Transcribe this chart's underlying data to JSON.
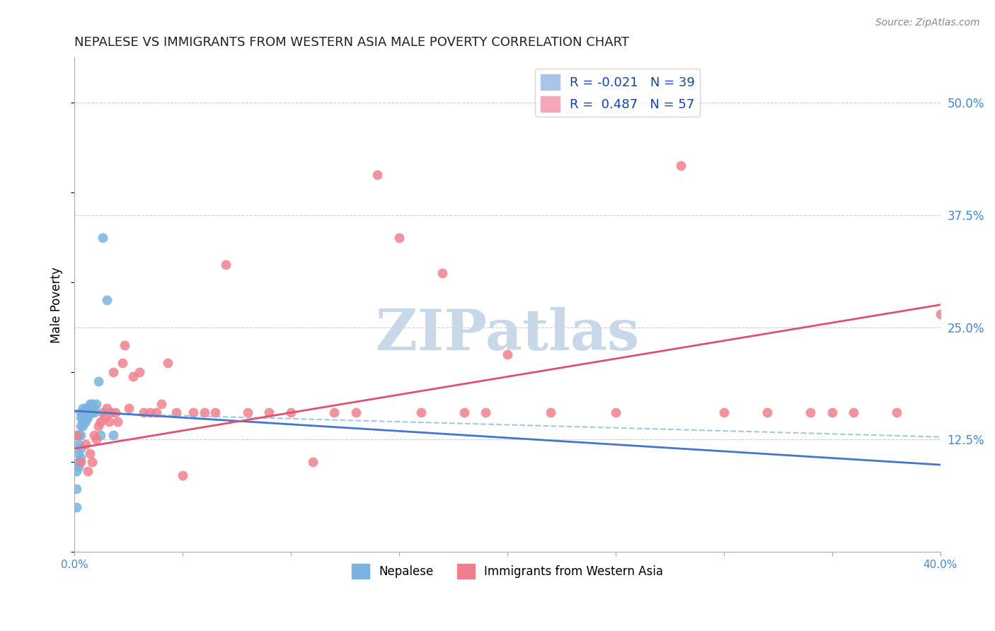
{
  "title": "NEPALESE VS IMMIGRANTS FROM WESTERN ASIA MALE POVERTY CORRELATION CHART",
  "source": "Source: ZipAtlas.com",
  "ylabel": "Male Poverty",
  "ytick_labels": [
    "12.5%",
    "25.0%",
    "37.5%",
    "50.0%"
  ],
  "ytick_values": [
    0.125,
    0.25,
    0.375,
    0.5
  ],
  "xlim": [
    0.0,
    0.4
  ],
  "ylim": [
    0.0,
    0.55
  ],
  "legend_r_entries": [
    {
      "label": "R = -0.021   N = 39",
      "color": "#aac4e8"
    },
    {
      "label": "R =  0.487   N = 57",
      "color": "#f4a7b9"
    }
  ],
  "nepalese_x": [
    0.001,
    0.001,
    0.001,
    0.002,
    0.002,
    0.002,
    0.002,
    0.002,
    0.003,
    0.003,
    0.003,
    0.003,
    0.003,
    0.003,
    0.004,
    0.004,
    0.004,
    0.004,
    0.004,
    0.005,
    0.005,
    0.005,
    0.005,
    0.006,
    0.006,
    0.006,
    0.007,
    0.007,
    0.007,
    0.008,
    0.008,
    0.009,
    0.009,
    0.01,
    0.011,
    0.012,
    0.013,
    0.015,
    0.018
  ],
  "nepalese_y": [
    0.05,
    0.07,
    0.09,
    0.095,
    0.1,
    0.11,
    0.12,
    0.13,
    0.105,
    0.115,
    0.13,
    0.14,
    0.15,
    0.155,
    0.14,
    0.145,
    0.15,
    0.155,
    0.16,
    0.145,
    0.15,
    0.155,
    0.16,
    0.15,
    0.155,
    0.16,
    0.155,
    0.16,
    0.165,
    0.155,
    0.165,
    0.155,
    0.16,
    0.165,
    0.19,
    0.13,
    0.35,
    0.28,
    0.13
  ],
  "western_asia_x": [
    0.001,
    0.003,
    0.005,
    0.006,
    0.007,
    0.008,
    0.009,
    0.01,
    0.011,
    0.012,
    0.013,
    0.014,
    0.015,
    0.016,
    0.017,
    0.018,
    0.019,
    0.02,
    0.022,
    0.023,
    0.025,
    0.027,
    0.03,
    0.032,
    0.035,
    0.038,
    0.04,
    0.043,
    0.047,
    0.05,
    0.055,
    0.06,
    0.065,
    0.07,
    0.08,
    0.09,
    0.1,
    0.11,
    0.12,
    0.13,
    0.14,
    0.15,
    0.16,
    0.17,
    0.18,
    0.19,
    0.2,
    0.22,
    0.25,
    0.28,
    0.3,
    0.32,
    0.34,
    0.35,
    0.36,
    0.38,
    0.4
  ],
  "western_asia_y": [
    0.13,
    0.1,
    0.12,
    0.09,
    0.11,
    0.1,
    0.13,
    0.125,
    0.14,
    0.145,
    0.155,
    0.15,
    0.16,
    0.145,
    0.155,
    0.2,
    0.155,
    0.145,
    0.21,
    0.23,
    0.16,
    0.195,
    0.2,
    0.155,
    0.155,
    0.155,
    0.165,
    0.21,
    0.155,
    0.085,
    0.155,
    0.155,
    0.155,
    0.32,
    0.155,
    0.155,
    0.155,
    0.1,
    0.155,
    0.155,
    0.42,
    0.35,
    0.155,
    0.31,
    0.155,
    0.155,
    0.22,
    0.155,
    0.155,
    0.43,
    0.155,
    0.155,
    0.155,
    0.155,
    0.155,
    0.155,
    0.265
  ],
  "nepalese_color": "#7ab3e0",
  "western_asia_color": "#f08090",
  "nepalese_line_color": "#4477cc",
  "western_asia_line_color": "#e05070",
  "nepalese_line_slope": -0.021,
  "nepalese_line_intercept": 0.155,
  "western_asia_line_start_y": 0.115,
  "western_asia_line_end_y": 0.275,
  "dashed_line_start_y": 0.155,
  "dashed_line_end_y": 0.128,
  "background_color": "#ffffff",
  "watermark_text": "ZIPatlas",
  "watermark_color": "#c8d8e8",
  "grid_color": "#cccccc",
  "grid_style": "--"
}
